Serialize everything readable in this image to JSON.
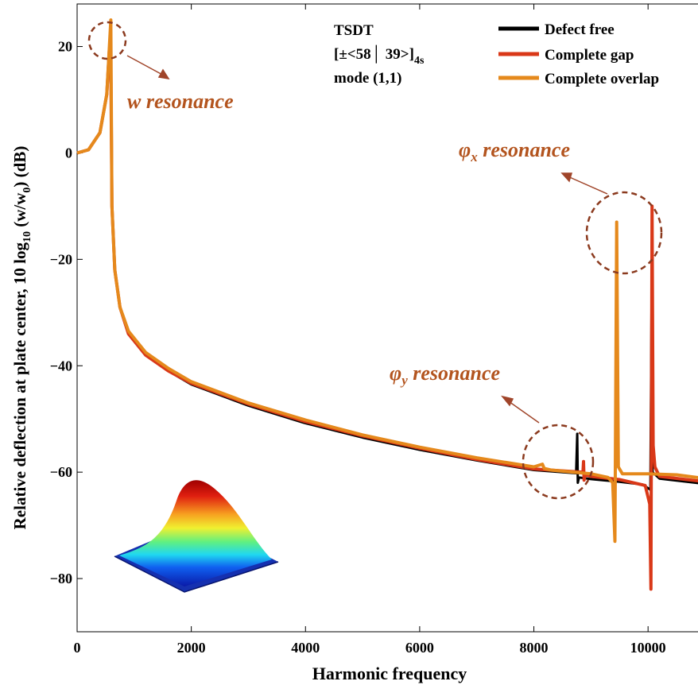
{
  "chart_data": {
    "type": "line",
    "xlabel": "Harmonic frequency",
    "ylabel": "Relative deflection at plate center, 10 log",
    "ylabel_sub": "10",
    "ylabel_tail": " (w/w",
    "ylabel_sub2": "0",
    "ylabel_end": ") (dB)",
    "xlim": [
      0,
      11000
    ],
    "ylim": [
      -90,
      28
    ],
    "xticks": [
      0,
      2000,
      4000,
      6000,
      8000,
      10000
    ],
    "yticks": [
      20,
      0,
      -20,
      -40,
      -60,
      -80
    ],
    "xtick_labels": [
      "0",
      "2000",
      "4000",
      "6000",
      "8000",
      "10000"
    ],
    "ytick_labels": [
      "20",
      "0",
      "−20",
      "−40",
      "−60",
      "−80"
    ],
    "legend": {
      "placement": "top-right",
      "entries": [
        "Defect free",
        "Complete gap",
        "Complete overlap"
      ]
    },
    "info": {
      "line1": "TSDT",
      "line2": "[±<58│ 39>]",
      "line2_sub": "4s",
      "line3": "mode (1,1)"
    },
    "annotations": {
      "w": {
        "symbol": "w",
        "text": " resonance"
      },
      "phix": {
        "symbol": "φ",
        "sub": "x",
        "text": " resonance"
      },
      "phiy": {
        "symbol": "φ",
        "sub": "y",
        "text": " resonance"
      }
    },
    "colors": {
      "defect_free": "#000000",
      "complete_gap": "#d93818",
      "complete_overlap": "#e5891c",
      "annotation": "#b3541e",
      "circle": "#8b3a1e"
    },
    "series": [
      {
        "name": "Defect free",
        "points": [
          [
            0,
            0
          ],
          [
            200,
            0.6
          ],
          [
            400,
            3.8
          ],
          [
            520,
            11
          ],
          [
            570,
            21
          ],
          [
            590,
            19
          ],
          [
            610,
            -10
          ],
          [
            660,
            -22
          ],
          [
            750,
            -29
          ],
          [
            900,
            -34
          ],
          [
            1200,
            -38
          ],
          [
            1600,
            -41
          ],
          [
            2000,
            -43.5
          ],
          [
            3000,
            -47.5
          ],
          [
            4000,
            -50.8
          ],
          [
            5000,
            -53.5
          ],
          [
            6000,
            -55.8
          ],
          [
            7000,
            -57.8
          ],
          [
            8000,
            -59.6
          ],
          [
            8740,
            -60.2
          ],
          [
            8760,
            -52.8
          ],
          [
            8770,
            -62
          ],
          [
            8790,
            -61
          ],
          [
            9000,
            -61.3
          ],
          [
            9500,
            -61.8
          ],
          [
            9900,
            -62.3
          ],
          [
            10040,
            -63.3
          ],
          [
            10060,
            -30
          ],
          [
            10080,
            -60
          ],
          [
            10200,
            -61.2
          ],
          [
            11000,
            -62.2
          ]
        ]
      },
      {
        "name": "Complete gap",
        "points": [
          [
            0,
            0
          ],
          [
            200,
            0.6
          ],
          [
            400,
            3.8
          ],
          [
            520,
            11
          ],
          [
            565,
            19.5
          ],
          [
            590,
            17
          ],
          [
            610,
            -10
          ],
          [
            660,
            -22
          ],
          [
            750,
            -29
          ],
          [
            900,
            -34
          ],
          [
            1200,
            -38
          ],
          [
            1600,
            -41
          ],
          [
            2000,
            -43.3
          ],
          [
            3000,
            -47.2
          ],
          [
            4000,
            -50.5
          ],
          [
            5000,
            -53.2
          ],
          [
            6000,
            -55.5
          ],
          [
            7000,
            -57.6
          ],
          [
            8000,
            -59.4
          ],
          [
            8860,
            -60
          ],
          [
            8870,
            -58
          ],
          [
            8880,
            -61.5
          ],
          [
            8900,
            -60.5
          ],
          [
            9000,
            -60.8
          ],
          [
            9500,
            -61.4
          ],
          [
            9950,
            -62.5
          ],
          [
            10030,
            -66
          ],
          [
            10050,
            -82
          ],
          [
            10070,
            -10
          ],
          [
            10090,
            -55
          ],
          [
            10120,
            -59
          ],
          [
            10200,
            -60.8
          ],
          [
            11000,
            -61.8
          ]
        ]
      },
      {
        "name": "Complete overlap",
        "points": [
          [
            0,
            0
          ],
          [
            200,
            0.6
          ],
          [
            400,
            3.8
          ],
          [
            520,
            11
          ],
          [
            590,
            25
          ],
          [
            610,
            -10
          ],
          [
            660,
            -22
          ],
          [
            750,
            -29
          ],
          [
            900,
            -33.5
          ],
          [
            1200,
            -37.5
          ],
          [
            1600,
            -40.5
          ],
          [
            2000,
            -43
          ],
          [
            3000,
            -47
          ],
          [
            4000,
            -50.2
          ],
          [
            5000,
            -53
          ],
          [
            6000,
            -55.3
          ],
          [
            7000,
            -57.3
          ],
          [
            8000,
            -59
          ],
          [
            8150,
            -58.5
          ],
          [
            8180,
            -59.3
          ],
          [
            8300,
            -59.6
          ],
          [
            9000,
            -60.3
          ],
          [
            9300,
            -61
          ],
          [
            9380,
            -62
          ],
          [
            9420,
            -73
          ],
          [
            9450,
            -13
          ],
          [
            9480,
            -59
          ],
          [
            9550,
            -60.3
          ],
          [
            10000,
            -60.3
          ],
          [
            10500,
            -60.5
          ],
          [
            11000,
            -61.2
          ]
        ]
      }
    ]
  }
}
